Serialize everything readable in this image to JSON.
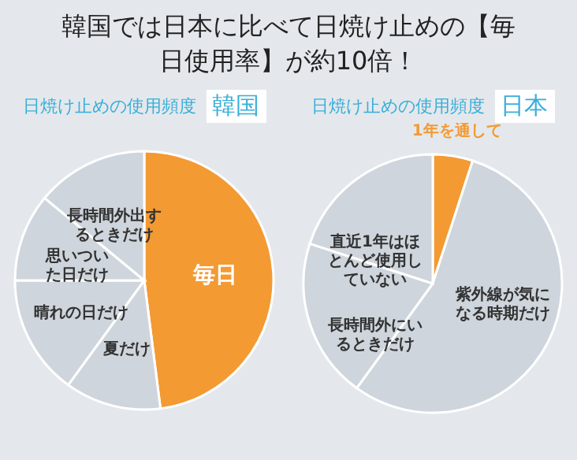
{
  "chart_data": [
    {
      "type": "other",
      "title": "韓国では日本に比べて日焼け止めの【毎日使用率】が約10倍！"
    },
    {
      "type": "pie",
      "title": "日焼け止めの使用頻度",
      "subtitle": "韓国",
      "categories": [
        "毎日",
        "夏だけ",
        "晴れの日だけ",
        "思いついた日だけ",
        "長時間外出するときだけ"
      ],
      "values": [
        48,
        12,
        15,
        11,
        14
      ],
      "colors": [
        "#f39a33",
        "#cfd5dc",
        "#cfd5dc",
        "#cfd5dc",
        "#cfd5dc"
      ]
    },
    {
      "type": "pie",
      "title": "日焼け止めの使用頻度",
      "subtitle": "日本",
      "categories": [
        "1年を通して",
        "紫外線が気になる時期だけ",
        "長時間外にいるときだけ",
        "直近1年はほとんど使用していない"
      ],
      "values": [
        5,
        55,
        20,
        20
      ],
      "colors": [
        "#f39a33",
        "#cfd5dc",
        "#cfd5dc",
        "#cfd5dc"
      ]
    }
  ]
}
